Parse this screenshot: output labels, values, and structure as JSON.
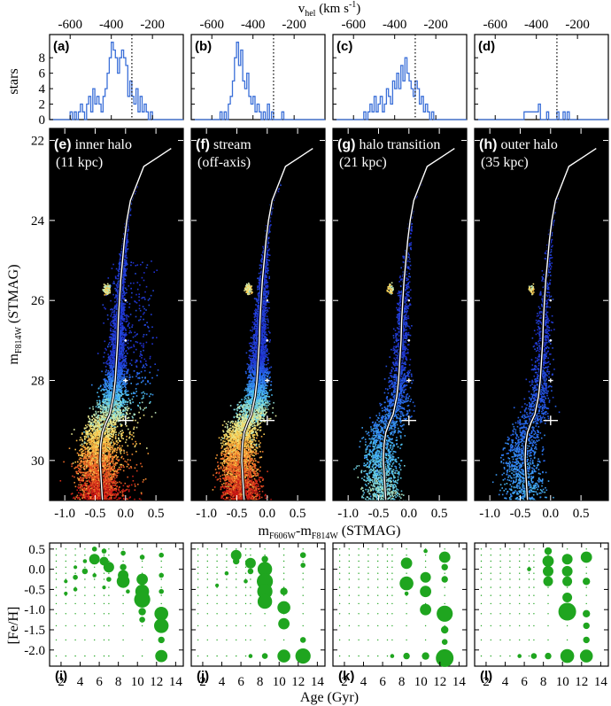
{
  "figure": {
    "top_axis_label": "v",
    "top_axis_label_sub": "hel",
    "top_axis_label_unit": "(km s",
    "top_axis_label_sup": "-1",
    "top_axis_label_close": ")",
    "hist_ylabel": "stars",
    "cmd_ylabel": "m",
    "cmd_ylabel_sub": "F814W",
    "cmd_ylabel_unit": "(STMAG)",
    "cmd_xlabel_m1": "m",
    "cmd_xlabel_sub1": "F606W",
    "cmd_xlabel_dash": "-m",
    "cmd_xlabel_sub2": "F814W",
    "cmd_xlabel_unit": "(STMAG)",
    "sfh_ylabel": "[Fe/H]",
    "sfh_xlabel": "Age (Gyr)"
  },
  "panels": [
    {
      "hist_label": "(a)",
      "cmd_label": "(e)",
      "cmd_title": "inner halo",
      "cmd_sub": "(11 kpc)",
      "sfh_label": "(i)"
    },
    {
      "hist_label": "(b)",
      "cmd_label": "(f)",
      "cmd_title": "stream",
      "cmd_sub": "(off-axis)",
      "sfh_label": "(j)"
    },
    {
      "hist_label": "(c)",
      "cmd_label": "(g)",
      "cmd_title": "halo transition",
      "cmd_sub": "(21 kpc)",
      "sfh_label": "(k)"
    },
    {
      "hist_label": "(d)",
      "cmd_label": "(h)",
      "cmd_title": "outer halo",
      "cmd_sub": "(35 kpc)",
      "sfh_label": "(l)"
    }
  ],
  "colors": {
    "hist_line": "#3a6fd8",
    "dotted_line": "#000000",
    "cmd_background": "#000000",
    "isochrone": "#ffffff",
    "sfh_marker": "#1fa51f"
  },
  "chart_data": [
    {
      "type": "histogram",
      "panels": [
        "(a)",
        "(b)",
        "(c)",
        "(d)"
      ],
      "xlabel": "vhel (km s-1)",
      "ylabel": "stars",
      "xlim": [
        -700,
        -50
      ],
      "ylim": [
        0,
        11
      ],
      "x_ticks": [
        -600,
        -400,
        -200
      ],
      "y_ticks": [
        0,
        2,
        4,
        6,
        8
      ],
      "reference_velocity": -300,
      "bin_width": 10,
      "series": [
        {
          "panel": "(a)",
          "bin_start": -600,
          "counts": [
            1,
            0,
            1,
            0,
            1,
            2,
            1,
            0,
            2,
            3,
            1,
            4,
            2,
            3,
            2,
            1,
            3,
            4,
            6,
            8,
            10,
            9,
            8,
            6,
            8,
            9,
            8,
            7,
            3,
            5,
            3,
            2,
            4,
            1,
            3,
            1,
            2,
            1,
            0,
            1,
            0
          ]
        },
        {
          "panel": "(b)",
          "bin_start": -600,
          "counts": [
            0,
            0,
            0,
            0,
            1,
            0,
            1,
            0,
            2,
            3,
            5,
            8,
            10,
            7,
            9,
            5,
            4,
            6,
            3,
            2,
            3,
            1,
            2,
            1,
            0,
            1,
            0,
            2,
            0,
            1,
            0,
            0,
            0,
            0,
            1,
            0,
            0,
            0,
            0,
            0,
            0
          ]
        },
        {
          "panel": "(c)",
          "bin_start": -600,
          "counts": [
            0,
            0,
            0,
            0,
            0,
            1,
            0,
            1,
            2,
            1,
            3,
            1,
            2,
            3,
            1,
            2,
            4,
            3,
            2,
            5,
            4,
            6,
            4,
            7,
            5,
            8,
            6,
            5,
            4,
            3,
            5,
            4,
            2,
            3,
            1,
            2,
            1,
            0,
            1,
            0,
            0
          ]
        },
        {
          "panel": "(d)",
          "bin_start": -600,
          "counts": [
            0,
            0,
            0,
            0,
            0,
            0,
            0,
            0,
            0,
            0,
            0,
            0,
            0,
            0,
            1,
            1,
            1,
            1,
            1,
            1,
            1,
            2,
            0,
            0,
            0,
            1,
            0,
            0,
            0,
            0,
            1,
            0,
            0,
            1,
            0,
            1,
            0,
            0,
            0,
            0,
            0
          ]
        }
      ]
    },
    {
      "type": "heatmap",
      "panels": [
        "(e)",
        "(f)",
        "(g)",
        "(h)"
      ],
      "xlabel": "mF606W-mF814W (STMAG)",
      "ylabel": "mF814W (STMAG)",
      "xlim": [
        -1.25,
        0.95
      ],
      "ylim": [
        31.0,
        21.7
      ],
      "x_ticks": [
        -1.0,
        -0.5,
        0.0,
        0.5
      ],
      "y_ticks": [
        22,
        24,
        26,
        28,
        30
      ],
      "isochrone": {
        "color": [
          -0.38,
          -0.4,
          -0.42,
          -0.41,
          -0.38,
          -0.32,
          -0.26,
          -0.2,
          -0.17,
          -0.15,
          -0.13,
          -0.12,
          -0.1,
          -0.08,
          -0.05,
          -0.02,
          0.02,
          0.08,
          0.3,
          0.5,
          0.75
        ],
        "mag": [
          31.0,
          30.5,
          30.0,
          29.6,
          29.3,
          29.05,
          28.85,
          28.4,
          28.0,
          27.5,
          27.0,
          26.5,
          26.0,
          25.5,
          25.0,
          24.5,
          24.0,
          23.5,
          22.65,
          22.45,
          22.2
        ]
      },
      "error_bars": [
        {
          "mag": 26.0,
          "color_err": 0.01,
          "mag_err": 0.02
        },
        {
          "mag": 27.0,
          "color_err": 0.02,
          "mag_err": 0.03
        },
        {
          "mag": 28.0,
          "color_err": 0.04,
          "mag_err": 0.05
        },
        {
          "mag": 29.0,
          "color_err": 0.12,
          "mag_err": 0.12
        }
      ],
      "density_scale": [
        1.0,
        1.0,
        0.35,
        0.22
      ]
    },
    {
      "type": "scatter",
      "panels": [
        "(i)",
        "(j)",
        "(k)",
        "(l)"
      ],
      "xlabel": "Age (Gyr)",
      "ylabel": "[Fe/H]",
      "xlim": [
        0.8,
        14.8
      ],
      "ylim": [
        -2.4,
        0.65
      ],
      "x_ticks": [
        2,
        4,
        6,
        8,
        10,
        12,
        14
      ],
      "y_ticks": [
        0.5,
        0.0,
        -0.5,
        -1.0,
        -1.5,
        -2.0
      ],
      "marker_size_meaning": "weight of population in model",
      "series": [
        {
          "panel": "(i)",
          "points": [
            [
              5.5,
              0.25,
              0.55
            ],
            [
              5.5,
              0.5,
              0.2
            ],
            [
              6.5,
              0.2,
              0.45
            ],
            [
              6.5,
              0.45,
              0.2
            ],
            [
              7.0,
              0.05,
              0.55
            ],
            [
              7.0,
              -0.25,
              0.2
            ],
            [
              8.5,
              0.05,
              0.3
            ],
            [
              8.5,
              -0.15,
              0.55
            ],
            [
              8.5,
              -0.3,
              0.7
            ],
            [
              8.5,
              0.4,
              0.2
            ],
            [
              9.0,
              -0.55,
              0.15
            ],
            [
              10.5,
              -0.25,
              0.6
            ],
            [
              10.5,
              -0.55,
              0.75
            ],
            [
              10.5,
              -0.75,
              0.9
            ],
            [
              10.5,
              -1.05,
              0.35
            ],
            [
              10.5,
              -1.25,
              0.25
            ],
            [
              10.5,
              0.3,
              0.2
            ],
            [
              12.5,
              -1.1,
              0.75
            ],
            [
              12.5,
              -1.4,
              0.8
            ],
            [
              12.5,
              -1.75,
              0.3
            ],
            [
              12.5,
              -2.15,
              0.65
            ],
            [
              12.5,
              -0.55,
              0.2
            ],
            [
              12.5,
              -0.15,
              0.2
            ],
            [
              12.5,
              0.35,
              0.2
            ],
            [
              4.5,
              -0.05,
              0.25
            ],
            [
              4.5,
              0.2,
              0.15
            ],
            [
              3.5,
              -0.2,
              0.2
            ],
            [
              3.5,
              -0.5,
              0.15
            ],
            [
              3.5,
              0.05,
              0.12
            ],
            [
              2.5,
              -0.6,
              0.12
            ],
            [
              2.5,
              -0.3,
              0.12
            ],
            [
              5.5,
              -0.15,
              0.15
            ],
            [
              6.5,
              -0.45,
              0.12
            ]
          ]
        },
        {
          "panel": "(j)",
          "points": [
            [
              5.5,
              0.35,
              0.55
            ],
            [
              5.5,
              0.2,
              0.3
            ],
            [
              7.0,
              0.15,
              0.55
            ],
            [
              7.0,
              -0.05,
              0.25
            ],
            [
              8.5,
              0.0,
              0.8
            ],
            [
              8.5,
              -0.3,
              0.9
            ],
            [
              8.5,
              -0.55,
              0.85
            ],
            [
              8.5,
              -0.8,
              0.8
            ],
            [
              8.5,
              0.25,
              0.3
            ],
            [
              10.5,
              -0.95,
              0.7
            ],
            [
              10.5,
              -1.35,
              0.6
            ],
            [
              10.5,
              -0.55,
              0.35
            ],
            [
              10.5,
              -2.15,
              0.7
            ],
            [
              12.5,
              -2.15,
              0.85
            ],
            [
              12.5,
              -1.75,
              0.25
            ],
            [
              12.5,
              0.35,
              0.25
            ],
            [
              12.5,
              0.1,
              0.2
            ],
            [
              6.5,
              -0.3,
              0.15
            ],
            [
              4.5,
              -0.1,
              0.15
            ],
            [
              3.5,
              -0.4,
              0.12
            ],
            [
              8.5,
              -2.15,
              0.25
            ],
            [
              7.0,
              -2.15,
              0.15
            ]
          ]
        },
        {
          "panel": "(k)",
          "points": [
            [
              8.5,
              0.15,
              0.6
            ],
            [
              8.5,
              -0.35,
              0.75
            ],
            [
              10.5,
              -0.2,
              0.55
            ],
            [
              10.5,
              -0.55,
              0.6
            ],
            [
              10.5,
              -1.0,
              0.6
            ],
            [
              12.5,
              0.3,
              0.6
            ],
            [
              12.5,
              0.05,
              0.3
            ],
            [
              12.5,
              -0.25,
              0.3
            ],
            [
              12.5,
              -1.1,
              0.9
            ],
            [
              12.5,
              -1.5,
              0.35
            ],
            [
              12.5,
              -1.8,
              0.25
            ],
            [
              12.5,
              -2.2,
              1.0
            ],
            [
              10.5,
              -2.15,
              0.35
            ],
            [
              8.5,
              -2.15,
              0.3
            ],
            [
              7.0,
              -2.15,
              0.15
            ],
            [
              10.5,
              0.45,
              0.15
            ],
            [
              8.5,
              -0.6,
              0.15
            ]
          ]
        },
        {
          "panel": "(l)",
          "points": [
            [
              8.5,
              0.45,
              0.35
            ],
            [
              8.5,
              0.2,
              0.6
            ],
            [
              8.5,
              -0.05,
              0.55
            ],
            [
              8.5,
              -0.3,
              0.5
            ],
            [
              10.5,
              0.25,
              0.55
            ],
            [
              10.5,
              -0.05,
              0.55
            ],
            [
              10.5,
              -0.3,
              0.5
            ],
            [
              10.5,
              -0.7,
              0.5
            ],
            [
              10.5,
              -1.05,
              1.0
            ],
            [
              10.5,
              -2.15,
              0.75
            ],
            [
              12.5,
              0.3,
              0.6
            ],
            [
              12.5,
              -0.3,
              0.35
            ],
            [
              12.5,
              -1.1,
              0.35
            ],
            [
              12.5,
              -1.4,
              0.3
            ],
            [
              12.5,
              -1.75,
              0.3
            ],
            [
              12.5,
              -2.15,
              0.7
            ],
            [
              7.0,
              -2.15,
              0.25
            ],
            [
              5.5,
              -2.15,
              0.15
            ],
            [
              6.5,
              0.0,
              0.15
            ],
            [
              8.5,
              -2.15,
              0.3
            ]
          ]
        }
      ]
    }
  ]
}
